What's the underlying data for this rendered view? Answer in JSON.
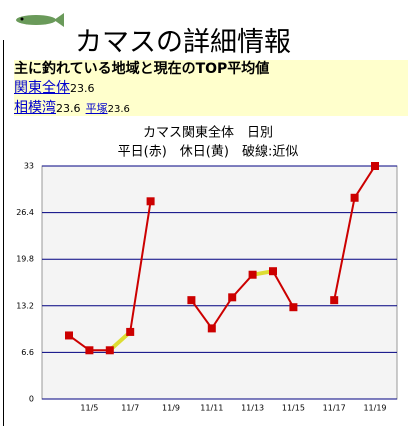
{
  "header": {
    "title": "カマスの詳細情報"
  },
  "region": {
    "heading": "主に釣れている地域と現在のTOP平均値",
    "main": {
      "label": "関東全体",
      "value": 23.6
    },
    "sub": {
      "label": "相模湾",
      "value": 23.6,
      "spot": "平塚",
      "spot_value": 23.6
    }
  },
  "chart_data": {
    "type": "line",
    "title": "カマス関東全体　日別",
    "subtitle": "平日(赤)　休日(黄)　破線:近似",
    "categories": [
      null,
      "11/5",
      null,
      "11/7",
      null,
      "11/9",
      null,
      "11/11",
      null,
      "11/13",
      null,
      "11/15",
      null,
      "11/17",
      null,
      "11/19"
    ],
    "series": [
      {
        "color": "#cc0000",
        "markers": true,
        "values": [
          9.0,
          6.9,
          6.9,
          9.5,
          28.0,
          null,
          14.0,
          10.0,
          14.4,
          17.6,
          18.1,
          13.0,
          null,
          14.0,
          28.5,
          33.0
        ]
      },
      {
        "color": "#dddd33",
        "markers": false,
        "values": [
          null,
          null,
          6.9,
          9.5,
          null,
          null,
          null,
          null,
          null,
          17.6,
          18.1,
          null,
          null,
          null,
          null,
          null
        ]
      }
    ],
    "ylim": [
      0,
      33
    ],
    "yticks": [
      0,
      6.6,
      13.2,
      19.8,
      26.4,
      33
    ],
    "grid": true
  }
}
